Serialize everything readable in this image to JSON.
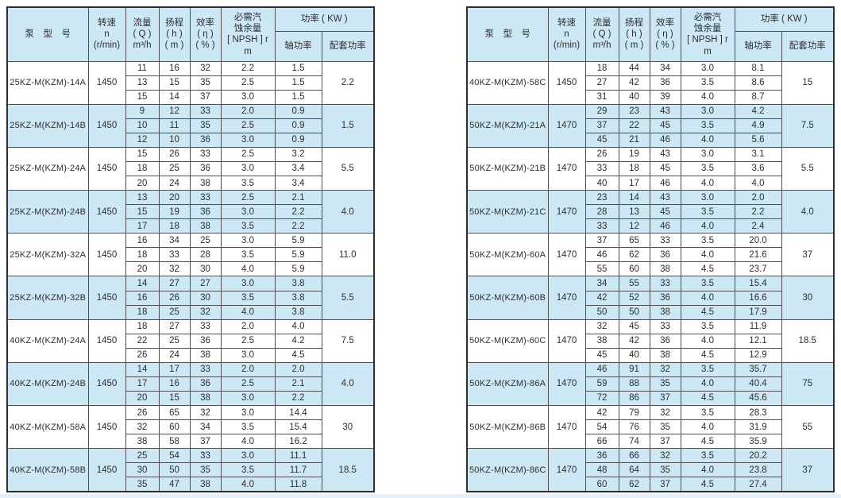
{
  "header": {
    "model": "泵　型　号",
    "speed": "转速\nn\n(r/min)",
    "flow": "流量\n( Q )\nm³/h",
    "head": "扬程\n( h )\n( m )",
    "efficiency": "效率\n( η )\n( % )",
    "npsh": "必需汽\n蚀余量\n[ NPSH ] r\nm",
    "power": "功率 ( KW )",
    "shaft_power": "轴功率",
    "rated_power": "配套功率"
  },
  "tables": [
    {
      "groups": [
        {
          "model": "25KZ-M(KZM)-14A",
          "speed": "1450",
          "rows": [
            [
              "11",
              "16",
              "32",
              "2.2",
              "1.5"
            ],
            [
              "13",
              "15",
              "35",
              "2.5",
              "1.5"
            ],
            [
              "15",
              "14",
              "37",
              "3.0",
              "1.5"
            ]
          ],
          "rated": "2.2"
        },
        {
          "model": "25KZ-M(KZM)-14B",
          "speed": "1450",
          "rows": [
            [
              "9",
              "12",
              "33",
              "2.0",
              "0.9"
            ],
            [
              "10",
              "11",
              "35",
              "2.5",
              "0.9"
            ],
            [
              "12",
              "10",
              "36",
              "3.0",
              "0.9"
            ]
          ],
          "rated": "1.5"
        },
        {
          "model": "25KZ-M(KZM)-24A",
          "speed": "1450",
          "rows": [
            [
              "15",
              "26",
              "33",
              "2.5",
              "3.2"
            ],
            [
              "18",
              "25",
              "36",
              "3.0",
              "3.4"
            ],
            [
              "20",
              "24",
              "38",
              "3.5",
              "3.4"
            ]
          ],
          "rated": "5.5"
        },
        {
          "model": "25KZ-M(KZM)-24B",
          "speed": "1450",
          "rows": [
            [
              "13",
              "20",
              "33",
              "2.5",
              "2.1"
            ],
            [
              "15",
              "19",
              "36",
              "3.0",
              "2.2"
            ],
            [
              "17",
              "18",
              "38",
              "3.5",
              "2.2"
            ]
          ],
          "rated": "4.0"
        },
        {
          "model": "25KZ-M(KZM)-32A",
          "speed": "1450",
          "rows": [
            [
              "16",
              "34",
              "25",
              "3.0",
              "5.9"
            ],
            [
              "18",
              "33",
              "28",
              "3.5",
              "5.9"
            ],
            [
              "20",
              "32",
              "30",
              "4.0",
              "5.9"
            ]
          ],
          "rated": "11.0"
        },
        {
          "model": "25KZ-M(KZM)-32B",
          "speed": "1450",
          "rows": [
            [
              "14",
              "27",
              "27",
              "3.0",
              "3.8"
            ],
            [
              "16",
              "26",
              "30",
              "3.5",
              "3.8"
            ],
            [
              "18",
              "25",
              "32",
              "4.0",
              "3.8"
            ]
          ],
          "rated": "5.5"
        },
        {
          "model": "40KZ-M(KZM)-24A",
          "speed": "1450",
          "rows": [
            [
              "18",
              "27",
              "33",
              "2.0",
              "4.0"
            ],
            [
              "22",
              "25",
              "36",
              "2.5",
              "4.2"
            ],
            [
              "26",
              "24",
              "38",
              "3.0",
              "4.5"
            ]
          ],
          "rated": "7.5"
        },
        {
          "model": "40KZ-M(KZM)-24B",
          "speed": "1450",
          "rows": [
            [
              "14",
              "17",
              "33",
              "2.0",
              "2.0"
            ],
            [
              "17",
              "16",
              "36",
              "2.5",
              "2.1"
            ],
            [
              "20",
              "15",
              "38",
              "3.0",
              "2.2"
            ]
          ],
          "rated": "4.0"
        },
        {
          "model": "40KZ-M(KZM)-58A",
          "speed": "1450",
          "rows": [
            [
              "26",
              "65",
              "32",
              "3.0",
              "14.4"
            ],
            [
              "32",
              "60",
              "34",
              "3.5",
              "15.4"
            ],
            [
              "38",
              "58",
              "37",
              "4.0",
              "16.2"
            ]
          ],
          "rated": "30"
        },
        {
          "model": "40KZ-M(KZM)-58B",
          "speed": "1450",
          "rows": [
            [
              "25",
              "54",
              "33",
              "3.0",
              "11.1"
            ],
            [
              "30",
              "50",
              "35",
              "3.5",
              "11.7"
            ],
            [
              "35",
              "47",
              "38",
              "4.0",
              "11.8"
            ]
          ],
          "rated": "18.5"
        }
      ]
    },
    {
      "groups": [
        {
          "model": "40KZ-M(KZM)-58C",
          "speed": "1450",
          "rows": [
            [
              "18",
              "44",
              "34",
              "3.0",
              "8.1"
            ],
            [
              "27",
              "42",
              "36",
              "3.5",
              "8.6"
            ],
            [
              "31",
              "40",
              "39",
              "4.0",
              "8.7"
            ]
          ],
          "rated": "15"
        },
        {
          "model": "50KZ-M(KZM)-21A",
          "speed": "1470",
          "rows": [
            [
              "29",
              "23",
              "43",
              "3.0",
              "4.2"
            ],
            [
              "37",
              "22",
              "45",
              "3.5",
              "4.9"
            ],
            [
              "45",
              "21",
              "46",
              "4.0",
              "5.6"
            ]
          ],
          "rated": "7.5"
        },
        {
          "model": "50KZ-M(KZM)-21B",
          "speed": "1470",
          "rows": [
            [
              "26",
              "19",
              "43",
              "3.0",
              "3.1"
            ],
            [
              "33",
              "18",
              "45",
              "3.5",
              "3.6"
            ],
            [
              "40",
              "17",
              "46",
              "4.0",
              "4.0"
            ]
          ],
          "rated": "5.5"
        },
        {
          "model": "50KZ-M(KZM)-21C",
          "speed": "1470",
          "rows": [
            [
              "23",
              "14",
              "43",
              "3.0",
              "2.0"
            ],
            [
              "28",
              "13",
              "45",
              "3.5",
              "2.2"
            ],
            [
              "33",
              "12",
              "46",
              "4.0",
              "2.4"
            ]
          ],
          "rated": "4.0"
        },
        {
          "model": "50KZ-M(KZM)-60A",
          "speed": "1470",
          "rows": [
            [
              "37",
              "65",
              "33",
              "3.5",
              "20.0"
            ],
            [
              "46",
              "62",
              "36",
              "4.0",
              "21.6"
            ],
            [
              "55",
              "60",
              "38",
              "4.5",
              "23.7"
            ]
          ],
          "rated": "37"
        },
        {
          "model": "50KZ-M(KZM)-60B",
          "speed": "1470",
          "rows": [
            [
              "34",
              "55",
              "33",
              "3.5",
              "15.4"
            ],
            [
              "42",
              "52",
              "36",
              "4.0",
              "16.6"
            ],
            [
              "50",
              "50",
              "38",
              "4.5",
              "17.9"
            ]
          ],
          "rated": "30"
        },
        {
          "model": "50KZ-M(KZM)-60C",
          "speed": "1470",
          "rows": [
            [
              "32",
              "45",
              "33",
              "3.5",
              "11.9"
            ],
            [
              "38",
              "42",
              "36",
              "4.0",
              "12.1"
            ],
            [
              "45",
              "40",
              "38",
              "4.5",
              "12.9"
            ]
          ],
          "rated": "18.5"
        },
        {
          "model": "50KZ-M(KZM)-86A",
          "speed": "1470",
          "rows": [
            [
              "46",
              "91",
              "32",
              "3.5",
              "35.7"
            ],
            [
              "59",
              "88",
              "35",
              "4.0",
              "40.4"
            ],
            [
              "72",
              "86",
              "37",
              "4.5",
              "45.6"
            ]
          ],
          "rated": "75"
        },
        {
          "model": "50KZ-M(KZM)-86B",
          "speed": "1470",
          "rows": [
            [
              "42",
              "79",
              "32",
              "3.5",
              "28.3"
            ],
            [
              "54",
              "76",
              "35",
              "4.0",
              "31.9"
            ],
            [
              "66",
              "74",
              "37",
              "4.5",
              "35.9"
            ]
          ],
          "rated": "55"
        },
        {
          "model": "50KZ-M(KZM)-86C",
          "speed": "1470",
          "rows": [
            [
              "36",
              "66",
              "32",
              "3.5",
              "20.2"
            ],
            [
              "48",
              "64",
              "35",
              "4.0",
              "23.8"
            ],
            [
              "60",
              "62",
              "37",
              "4.5",
              "27.4"
            ]
          ],
          "rated": "37"
        }
      ]
    }
  ],
  "colors": {
    "row_blue": "#cde8f5",
    "row_white": "#ffffff",
    "border_inner": "#4f4f4f",
    "border_outer": "#2e2e2e",
    "text": "#2e2e2e",
    "bottom_strip": "#e2f1fa"
  }
}
